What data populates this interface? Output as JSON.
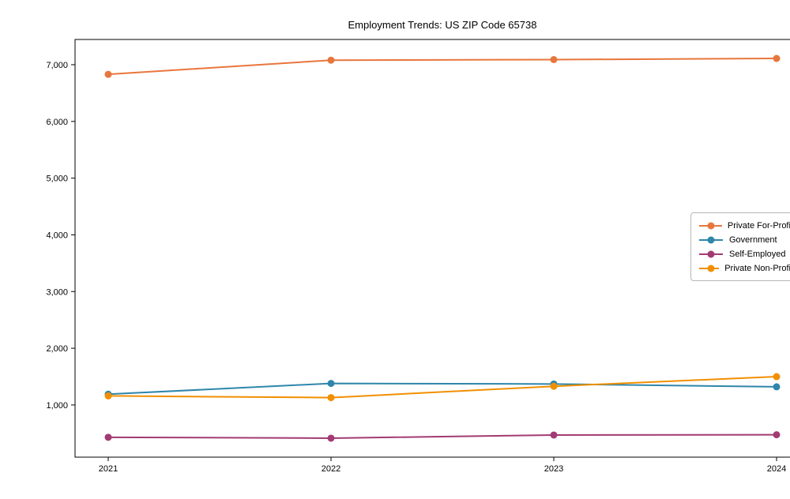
{
  "title": "Employment Trends: US ZIP Code 65738",
  "chart_data": {
    "type": "line",
    "title": "Employment Trends: US ZIP Code 65738",
    "xlabel": "",
    "ylabel": "",
    "x_tick_labels": [
      "2021",
      "2022",
      "2023",
      "2024"
    ],
    "y_tick_labels": [
      "1,000",
      "2,000",
      "3,000",
      "4,000",
      "5,000",
      "6,000",
      "7,000"
    ],
    "y_ticks": [
      1000,
      2000,
      3000,
      4000,
      5000,
      6000,
      7000
    ],
    "ylim": [
      80,
      7445
    ],
    "grid": false,
    "legend_position": "center right",
    "marker": "circle",
    "x": [
      2021,
      2022,
      2023,
      2024
    ],
    "series": [
      {
        "name": "Private For-Profit",
        "color": "#E8763C",
        "values": [
          6830,
          7080,
          7090,
          7110
        ]
      },
      {
        "name": "Government",
        "color": "#2E86AB",
        "values": [
          1190,
          1380,
          1370,
          1320
        ]
      },
      {
        "name": "Self-Employed",
        "color": "#A23B72",
        "values": [
          430,
          415,
          470,
          475
        ]
      },
      {
        "name": "Private Non-Profit",
        "color": "#F18F01",
        "values": [
          1160,
          1130,
          1330,
          1500
        ]
      }
    ]
  }
}
